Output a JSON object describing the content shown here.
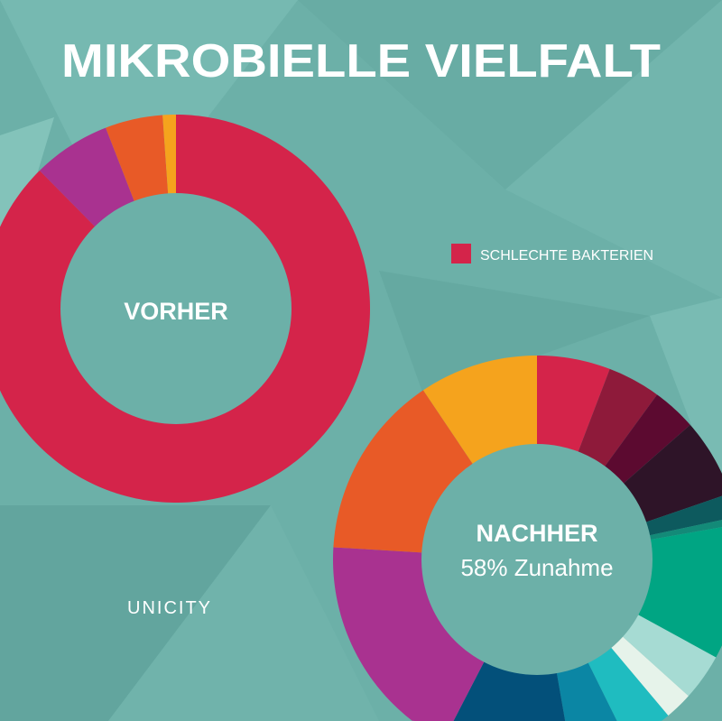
{
  "title": "MIKROBIELLE VIELFALT",
  "brand": "UNICITY",
  "legend": [
    {
      "label": "SCHLECHTE BAKTERIEN",
      "color": "#d4244a"
    }
  ],
  "background_color": "#6cb0a8",
  "chart_data": [
    {
      "type": "pie",
      "variant": "donut",
      "center_label": "VORHER",
      "start": "top",
      "direction": "clockwise",
      "slices": [
        {
          "label": "SCHLECHTE BAKTERIEN",
          "value": 87.6,
          "color": "#d4244a"
        },
        {
          "value": 6.5,
          "color": "#a93290"
        },
        {
          "value": 4.8,
          "color": "#e85a27"
        },
        {
          "value": 1.1,
          "color": "#f5a31d"
        }
      ]
    },
    {
      "type": "pie",
      "variant": "donut",
      "center_label": "NACHHER",
      "center_sublabel": "58% Zunahme",
      "start": "top",
      "direction": "clockwise",
      "slices": [
        {
          "label": "SCHLECHTE BAKTERIEN",
          "value": 5.8,
          "color": "#d4244a"
        },
        {
          "value": 4.2,
          "color": "#8e1a3a"
        },
        {
          "value": 3.5,
          "color": "#5c0a30"
        },
        {
          "value": 6.2,
          "color": "#2e1428"
        },
        {
          "value": 1.9,
          "color": "#0d5a5e"
        },
        {
          "value": 0.6,
          "color": "#138a78"
        },
        {
          "value": 10.7,
          "color": "#00a583"
        },
        {
          "value": 3.7,
          "color": "#a6dbd3"
        },
        {
          "value": 2.2,
          "color": "#e6f3ea"
        },
        {
          "value": 4.7,
          "color": "#1fbcc0"
        },
        {
          "value": 4.2,
          "color": "#0b86a4"
        },
        {
          "value": 8.9,
          "color": "#03507a"
        },
        {
          "value": 19.2,
          "color": "#a93290"
        },
        {
          "value": 14.6,
          "color": "#e85a27"
        },
        {
          "value": 9.4,
          "color": "#f5a31d"
        }
      ]
    }
  ]
}
